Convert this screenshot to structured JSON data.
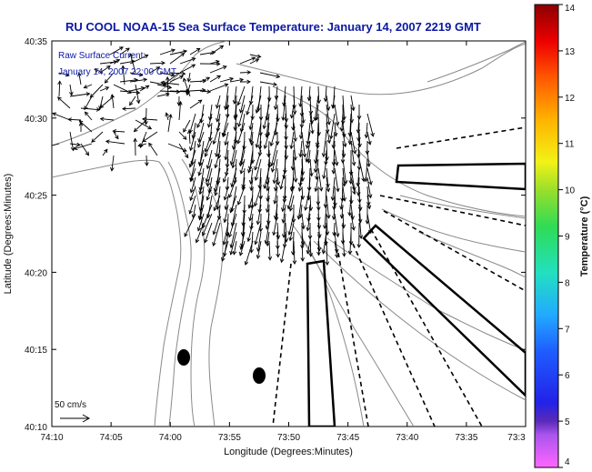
{
  "chart_data": {
    "type": "vector-field",
    "title": "RU COOL  NOAA-15  Sea Surface Temperature:  January 14, 2007 2219 GMT",
    "xlabel": "Longitude (Degrees:Minutes)",
    "ylabel": "Latitude (Degrees:Minutes)",
    "x_ticks": [
      "74:10",
      "74:05",
      "74:00",
      "73:55",
      "73:50",
      "73:45",
      "73:40",
      "73:35",
      "73:3"
    ],
    "y_ticks": [
      "40:10",
      "40:15",
      "40:20",
      "40:25",
      "40:30",
      "40:35"
    ],
    "legend_text_1": "Raw Surface Current:",
    "legend_text_2": "January 14, 2007 22:00 GMT",
    "scale_label": "50 cm/s",
    "colorbar": {
      "label": "Temperature (°C)",
      "range": [
        4,
        14
      ],
      "ticks": [
        "4",
        "5",
        "6",
        "7",
        "8",
        "9",
        "10",
        "11",
        "12",
        "13",
        "14"
      ]
    },
    "grid": false
  }
}
